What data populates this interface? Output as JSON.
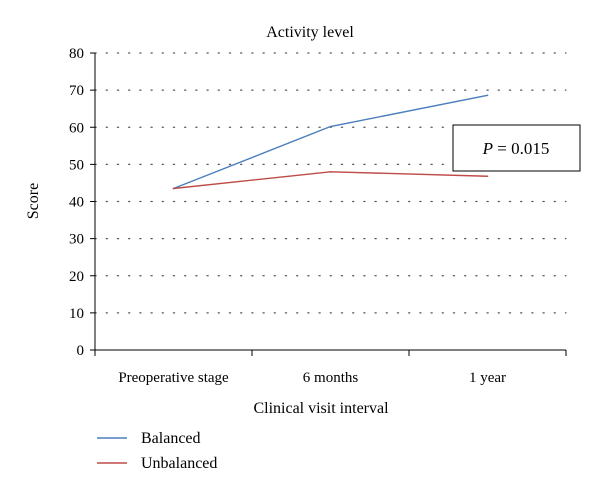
{
  "chart_data": {
    "type": "line",
    "title": "Activity level",
    "xlabel": "Clinical visit interval",
    "ylabel": "Score",
    "categories": [
      "Preoperative stage",
      "6 months",
      "1 year"
    ],
    "ylim": [
      0,
      80
    ],
    "yticks": [
      "0",
      "10",
      "20",
      "30",
      "40",
      "50",
      "60",
      "70",
      "80"
    ],
    "grid": "horizontal dotted",
    "legend": "bottom-left",
    "series": [
      {
        "name": "Balanced",
        "values": [
          43.5,
          60.2,
          68.6
        ],
        "color": "#4a7ebb"
      },
      {
        "name": "Unbalanced",
        "values": [
          43.5,
          48.0,
          46.8
        ],
        "color": "#be4b48"
      }
    ],
    "annotation": {
      "p_label": "P",
      "equals_value": " = 0.015"
    }
  }
}
